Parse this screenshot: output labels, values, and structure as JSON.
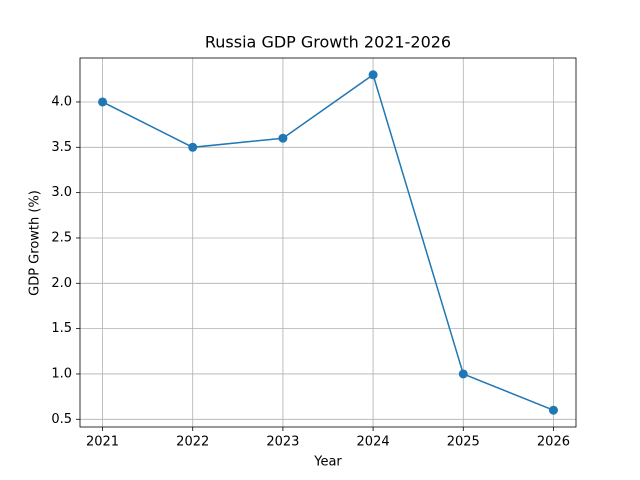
{
  "chart_data": {
    "type": "line",
    "title": "Russia GDP Growth 2021-2026",
    "x_label": "Year",
    "y_label": "GDP Growth (%)",
    "x": [
      2021,
      2022,
      2023,
      2024,
      2025,
      2026
    ],
    "series": [
      {
        "color": "#1f77b4",
        "values": [
          4.0,
          3.5,
          3.6,
          4.3,
          1.0,
          0.6
        ]
      }
    ],
    "xlim": [
      2020.75,
      2026.25
    ],
    "xticks": [
      2021,
      2022,
      2023,
      2024,
      2025,
      2026
    ],
    "ylim": [
      0.415,
      4.485
    ],
    "yticks": [
      {
        "value": 0.5,
        "label": "0.5"
      },
      {
        "value": 1,
        "label": "1.0"
      },
      {
        "value": 1.5,
        "label": "1.5"
      },
      {
        "value": 2,
        "label": "2.0"
      },
      {
        "value": 2.5,
        "label": "2.5"
      },
      {
        "value": 3,
        "label": "3.0"
      },
      {
        "value": 3.5,
        "label": "3.5"
      },
      {
        "value": 4,
        "label": "4.0"
      }
    ],
    "grid": true,
    "markers": true
  }
}
